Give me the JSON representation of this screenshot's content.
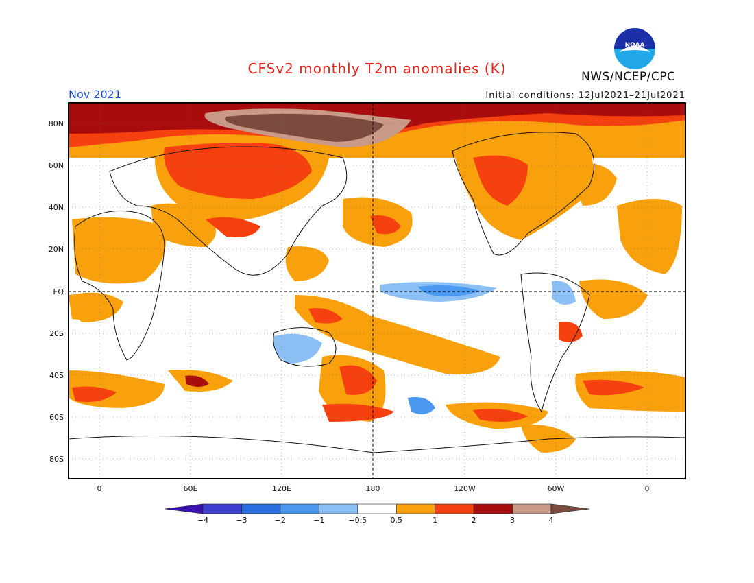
{
  "title": "CFSv2 monthly T2m anomalies (K)",
  "period": "Nov 2021",
  "initial_conditions": "Initial conditions: 12Jul2021–21Jul2021",
  "organization": "NWS/NCEP/CPC",
  "logo_text": "NOAA",
  "lat_labels": [
    "80N",
    "60N",
    "40N",
    "20N",
    "EQ",
    "20S",
    "40S",
    "60S",
    "80S"
  ],
  "lon_labels": [
    "0",
    "60E",
    "120E",
    "180",
    "120W",
    "60W",
    "0"
  ],
  "colorbar": {
    "labels": [
      "−4",
      "−3",
      "−2",
      "−1",
      "−0.5",
      "0.5",
      "1",
      "2",
      "3",
      "4"
    ],
    "colors": [
      "#3a10b0",
      "#3c3fd0",
      "#2a6ee0",
      "#4a98f0",
      "#8cc0f4",
      "#ffffff",
      "#f8a10c",
      "#f5410f",
      "#a80c0c",
      "#c99a88",
      "#7a4b3e"
    ]
  },
  "colors": {
    "title": "#e8231b",
    "period": "#1a4cd6",
    "warm_05_1": "#f8a10c",
    "warm_1_2": "#f5410f",
    "warm_2_3": "#a80c0c",
    "warm_3_4": "#c99a88",
    "warm_gt4": "#7a4b3e",
    "cool_05_1": "#8cc0f4",
    "cool_1_2": "#4a98f0"
  }
}
